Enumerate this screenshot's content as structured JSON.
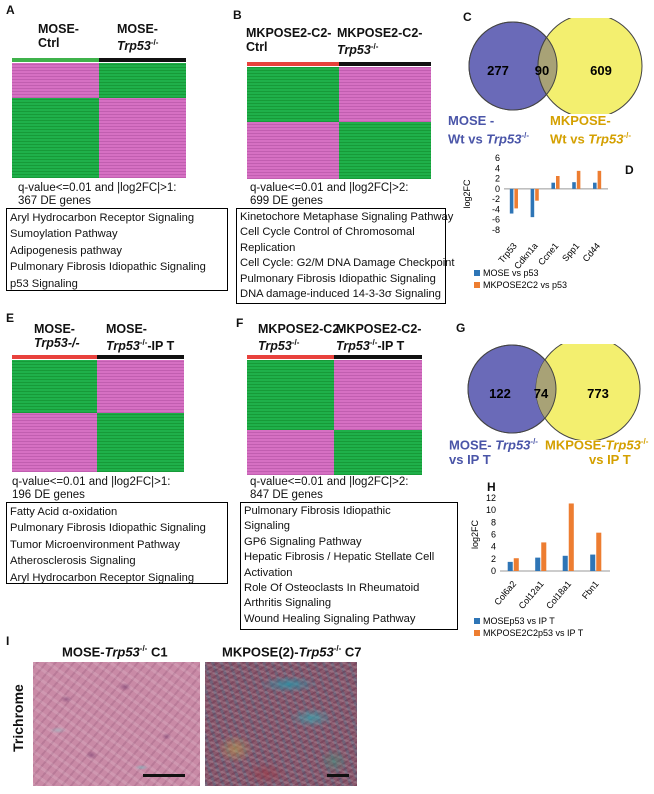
{
  "panels": {
    "A": {
      "label": "A",
      "group1_line1": "MOSE-",
      "group1_line2": "Ctrl",
      "group2_prefix": "MOSE-",
      "group2_italic": "Trp53",
      "group2_sup": "-/-",
      "criteria": "q-value<=0.01 and |log2FC|>1:",
      "genes": "367 DE genes",
      "pathways": [
        "Aryl Hydrocarbon Receptor Signaling",
        "Sumoylation Pathway",
        "Adipogenesis pathway",
        "Pulmonary Fibrosis Idiopathic Signaling",
        "p53 Signaling"
      ]
    },
    "B": {
      "label": "B",
      "group1_line1": "MKPOSE2-C2-",
      "group1_line2": "Ctrl",
      "group2_line1": "MKPOSE2-C2-",
      "group2_italic": "Trp53",
      "group2_sup": "-/-",
      "criteria": "q-value<=0.01 and |log2FC|>2:",
      "genes": "699 DE genes",
      "pathways": [
        "Kinetochore Metaphase Signaling Pathway",
        "Cell Cycle Control of Chromosomal",
        "Replication",
        "Cell Cycle: G2/M DNA Damage Checkpoint",
        "Pulmonary Fibrosis Idiopathic Signaling",
        "DNA damage-induced 14-3-3σ Signaling"
      ]
    },
    "C": {
      "label": "C",
      "left_count": "277",
      "overlap_count": "90",
      "right_count": "609",
      "left_line1": "MOSE -",
      "left_line2_prefix": "Wt vs ",
      "left_italic": "Trp53",
      "left_sup": "-/-",
      "right_line1": "MKPOSE-",
      "right_line2_prefix": "Wt vs ",
      "right_italic": "Trp53",
      "right_sup": "-/-",
      "left_color": "#6a6ab8",
      "right_color": "#f3ef6f",
      "left_text_color": "#4a55a8",
      "right_text_color": "#d4a000"
    },
    "E": {
      "label": "E",
      "group1_line1": "MOSE-",
      "group1_line2": "Trp53-/-",
      "group2_line1": "MOSE-",
      "group2_italic": "Trp53",
      "group2_sup": "-/-",
      "group2_suffix": "-IP T",
      "criteria": "q-value<=0.01 and |log2FC|>1:",
      "genes": "196 DE genes",
      "pathways": [
        "Fatty Acid α-oxidation",
        "Pulmonary Fibrosis Idiopathic Signaling",
        "Tumor Microenvironment Pathway",
        "Atherosclerosis Signaling",
        "Aryl Hydrocarbon Receptor Signaling"
      ]
    },
    "F": {
      "label": "F",
      "group1_line1": "MKPOSE2-C2-",
      "group1_italic": "Trp53",
      "group1_sup": "-/-",
      "group2_line1": "MKPOSE2-C2-",
      "group2_italic": "Trp53",
      "group2_sup": "-/-",
      "group2_suffix": "-IP T",
      "criteria": "q-value<=0.01 and |log2FC|>2:",
      "genes": "847 DE genes",
      "pathways": [
        "Pulmonary Fibrosis Idiopathic",
        "Signaling",
        "GP6 Signaling Pathway",
        "Hepatic Fibrosis / Hepatic Stellate Cell",
        "Activation",
        "Role Of Osteoclasts In Rheumatoid",
        "Arthritis Signaling",
        "Wound Healing Signaling Pathway"
      ]
    },
    "G": {
      "label": "G",
      "left_count": "122",
      "overlap_count": "74",
      "right_count": "773",
      "left_line1_prefix": "MOSE- ",
      "left_italic": "Trp53",
      "left_sup": "-/-",
      "left_line2": "vs IP T",
      "right_line1_prefix": "MKPOSE-",
      "right_italic": "Trp53",
      "right_sup": "-/-",
      "right_line2": "vs IP T"
    },
    "I": {
      "label": "I",
      "side_label": "Trichrome",
      "left_title_prefix": "MOSE-",
      "left_title_italic": "Trp53",
      "left_title_sup": "-/-",
      "left_title_suffix": " C1",
      "right_title_prefix": "MKPOSE(2)-",
      "right_title_italic": "Trp53",
      "right_title_sup": "-/-",
      "right_title_suffix": " C7"
    },
    "D": {
      "label": "D"
    },
    "H": {
      "label": "H"
    }
  },
  "colors": {
    "red_bar": "#e8413c",
    "black_bar": "#111111",
    "heat_green": "#1fb04a",
    "heat_magenta": "#d670c3",
    "series_blue": "#2e75b6",
    "series_orange": "#ed7d31"
  },
  "chart_data": [
    {
      "id": "D",
      "type": "bar",
      "categories": [
        "Trp53",
        "Cdkn1a",
        "Ccne1",
        "Spp1",
        "Cd44"
      ],
      "series": [
        {
          "name": "MOSE vs p53",
          "values": [
            -4.8,
            -5.5,
            1.2,
            1.3,
            1.2
          ]
        },
        {
          "name": "MKPOSE2C2 vs p53",
          "values": [
            -3.8,
            -2.3,
            2.5,
            3.5,
            3.5
          ]
        }
      ],
      "ylabel": "log2FC",
      "ylim": [
        -8,
        6
      ],
      "yticks": [
        6,
        4,
        2,
        0,
        -2,
        -4,
        -6,
        -8
      ],
      "legend": "bottom"
    },
    {
      "id": "H",
      "type": "bar",
      "categories": [
        "Col6a2",
        "Col12a1",
        "Col18a1",
        "Fbn1"
      ],
      "series": [
        {
          "name": "MOSEp53 vs IP T",
          "values": [
            1.5,
            2.2,
            2.5,
            2.7
          ]
        },
        {
          "name": "MKPOSE2C2p53 vs IP T",
          "values": [
            2.1,
            4.7,
            11.1,
            6.3
          ]
        }
      ],
      "ylabel": "log2FC",
      "ylim": [
        0,
        12
      ],
      "yticks": [
        12,
        10,
        8,
        6,
        4,
        2,
        0
      ],
      "legend": "bottom"
    }
  ]
}
